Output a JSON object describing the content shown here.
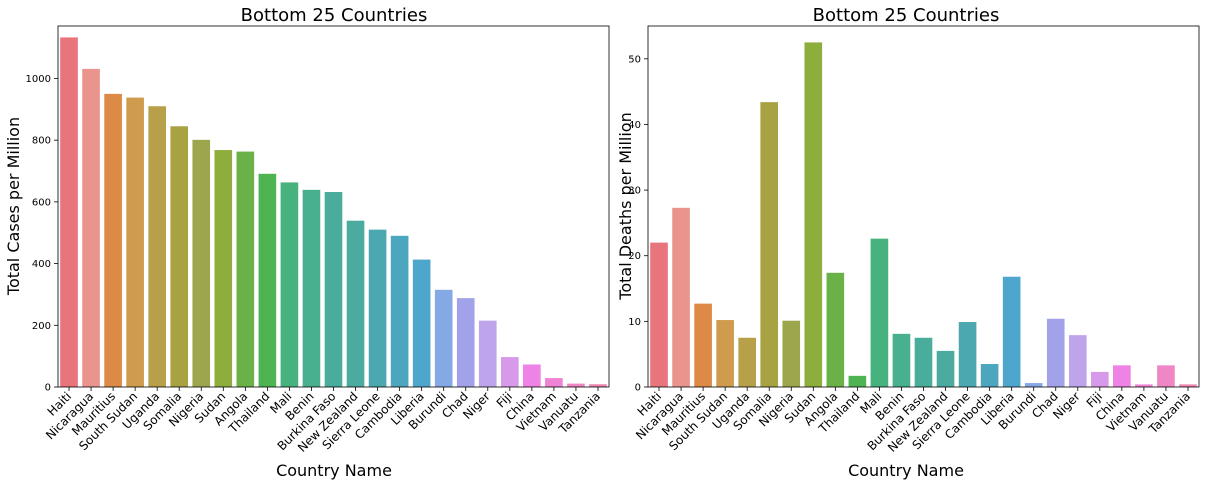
{
  "chart_data": [
    {
      "type": "bar",
      "title": "Bottom 25 Countries",
      "xlabel": "Country Name",
      "ylabel": "Total Cases per Million",
      "ylim": [
        0,
        1170
      ],
      "yticks": [
        0,
        200,
        400,
        600,
        800,
        1000
      ],
      "categories": [
        "Haiti",
        "Nicaragua",
        "Mauritius",
        "South Sudan",
        "Uganda",
        "Somalia",
        "Nigeria",
        "Sudan",
        "Angola",
        "Thailand",
        "Mali",
        "Benin",
        "Burkina Faso",
        "New Zealand",
        "Sierra Leone",
        "Cambodia",
        "Liberia",
        "Burundi",
        "Chad",
        "Niger",
        "Fiji",
        "China",
        "Vietnam",
        "Vanuatu",
        "Tanzania"
      ],
      "values": [
        1133,
        1031,
        950,
        938,
        910,
        845,
        801,
        768,
        763,
        691,
        663,
        639,
        632,
        539,
        510,
        490,
        413,
        315,
        288,
        215,
        97,
        73,
        29,
        11,
        9
      ],
      "colors": [
        "#e8747c",
        "#e9958d",
        "#dc8a45",
        "#cf9b4d",
        "#b8a04a",
        "#a8a242",
        "#9da64c",
        "#8dae3d",
        "#6ab248",
        "#4eb351",
        "#47b27e",
        "#48af8f",
        "#4aad9c",
        "#4bab9f",
        "#4ba8b0",
        "#4ca6be",
        "#4fa6cc",
        "#84a9e4",
        "#a2a2ea",
        "#bda4eb",
        "#d79aea",
        "#ee82e5",
        "#ef84d6",
        "#ef87c6",
        "#ef85b3"
      ],
      "grid": false
    },
    {
      "type": "bar",
      "title": "Bottom 25 Countries",
      "xlabel": "Country Name",
      "ylabel": "Total Deaths per Million",
      "ylim": [
        0,
        55
      ],
      "yticks": [
        0,
        10,
        20,
        30,
        40,
        50
      ],
      "categories": [
        "Haiti",
        "Nicaragua",
        "Mauritius",
        "South Sudan",
        "Uganda",
        "Somalia",
        "Nigeria",
        "Sudan",
        "Angola",
        "Thailand",
        "Mali",
        "Benin",
        "Burkina Faso",
        "New Zealand",
        "Sierra Leone",
        "Cambodia",
        "Liberia",
        "Burundi",
        "Chad",
        "Niger",
        "Fiji",
        "China",
        "Vietnam",
        "Vanuatu",
        "Tanzania"
      ],
      "values": [
        22.0,
        27.3,
        12.7,
        10.2,
        7.5,
        43.4,
        10.1,
        52.5,
        17.4,
        1.7,
        22.6,
        8.1,
        7.5,
        5.5,
        9.9,
        3.5,
        16.8,
        0.6,
        10.4,
        7.9,
        2.3,
        3.3,
        0.4,
        3.3,
        0.4
      ],
      "colors": [
        "#e8747c",
        "#e9958d",
        "#dc8a45",
        "#cf9b4d",
        "#b8a04a",
        "#a8a242",
        "#9da64c",
        "#8dae3d",
        "#6ab248",
        "#4eb351",
        "#47b27e",
        "#48af8f",
        "#4aad9c",
        "#4bab9f",
        "#4ba8b0",
        "#4ca6be",
        "#4fa6cc",
        "#84a9e4",
        "#a2a2ea",
        "#bda4eb",
        "#d79aea",
        "#ee82e5",
        "#ef84d6",
        "#ef87c6",
        "#ef85b3"
      ],
      "grid": false
    }
  ]
}
